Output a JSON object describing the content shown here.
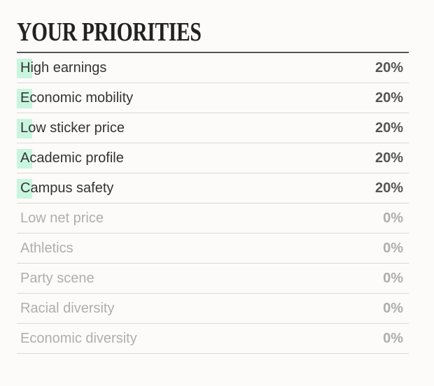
{
  "title": "YOUR PRIORITIES",
  "accent_color": "#c9f5de",
  "priorities": [
    {
      "label": "High earnings",
      "value": "20%",
      "weight": 0.2
    },
    {
      "label": "Economic mobility",
      "value": "20%",
      "weight": 0.2
    },
    {
      "label": "Low sticker price",
      "value": "20%",
      "weight": 0.2
    },
    {
      "label": "Academic profile",
      "value": "20%",
      "weight": 0.2
    },
    {
      "label": "Campus safety",
      "value": "20%",
      "weight": 0.2
    },
    {
      "label": "Low net price",
      "value": "0%",
      "weight": 0
    },
    {
      "label": "Athletics",
      "value": "0%",
      "weight": 0
    },
    {
      "label": "Party scene",
      "value": "0%",
      "weight": 0
    },
    {
      "label": "Racial diversity",
      "value": "0%",
      "weight": 0
    },
    {
      "label": "Economic diversity",
      "value": "0%",
      "weight": 0
    }
  ]
}
